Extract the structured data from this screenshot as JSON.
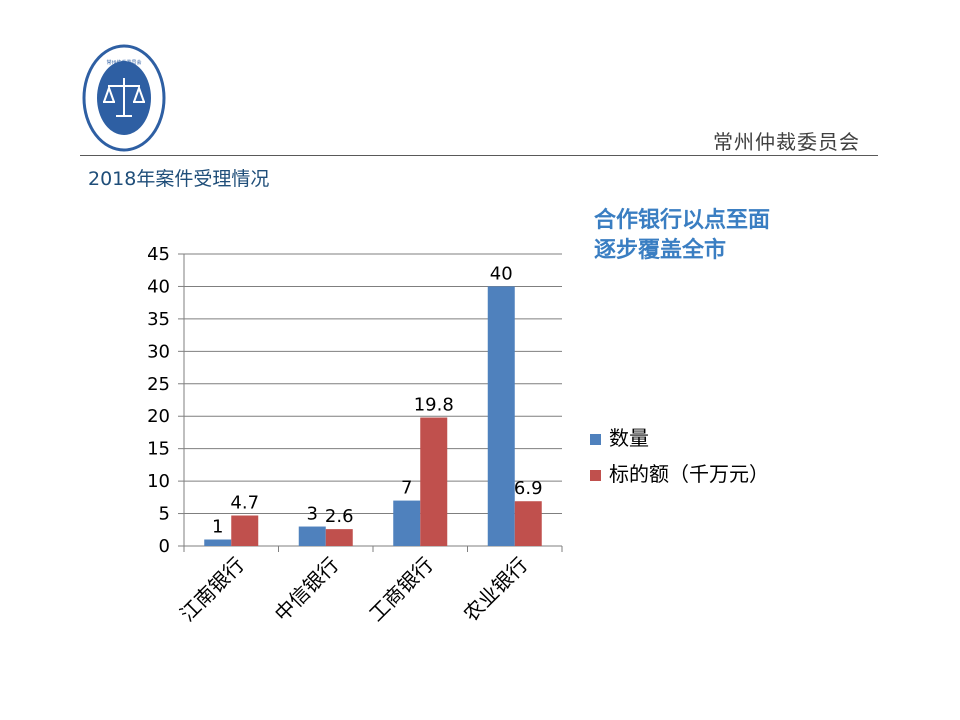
{
  "header": {
    "org_name": "常州仲裁委员会",
    "subtitle": "2018年案件受理情况"
  },
  "slogan": {
    "line1": "合作银行以点至面",
    "line2": "逐步覆盖全市"
  },
  "logo": {
    "icon": "arbitration-scale-seal",
    "text": "常州仲裁委员会",
    "color": "#2e5fa3"
  },
  "chart_data": {
    "type": "bar",
    "categories": [
      "江南银行",
      "中信银行",
      "工商银行",
      "农业银行"
    ],
    "series": [
      {
        "name": "数量",
        "values": [
          1,
          3,
          7,
          40
        ],
        "color": "#4f81bd"
      },
      {
        "name": "标的额（千万元）",
        "values": [
          4.7,
          2.6,
          19.8,
          6.9
        ],
        "color": "#c0504d"
      }
    ],
    "data_labels": [
      [
        "1",
        "3",
        "7",
        "40"
      ],
      [
        "4.7",
        "2.6",
        "19.8",
        "6.9"
      ]
    ],
    "ylim": [
      0,
      45
    ],
    "yticks": [
      "0",
      "5",
      "10",
      "15",
      "20",
      "25",
      "30",
      "35",
      "40",
      "45"
    ],
    "grid": true,
    "legend_position": "right"
  }
}
